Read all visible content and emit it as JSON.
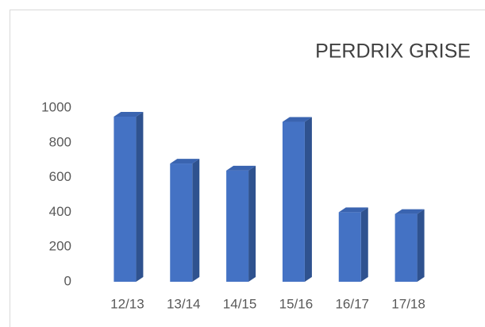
{
  "chart_data": {
    "type": "bar3d",
    "title": "PERDRIX GRISE",
    "categories": [
      "12/13",
      "13/14",
      "14/15",
      "15/16",
      "16/17",
      "17/18"
    ],
    "values": [
      950,
      680,
      640,
      920,
      400,
      390
    ],
    "color": "#4472c4",
    "ylim": [
      0,
      1000
    ],
    "yticks": [
      0,
      200,
      400,
      600,
      800,
      1000
    ],
    "grid": false
  }
}
